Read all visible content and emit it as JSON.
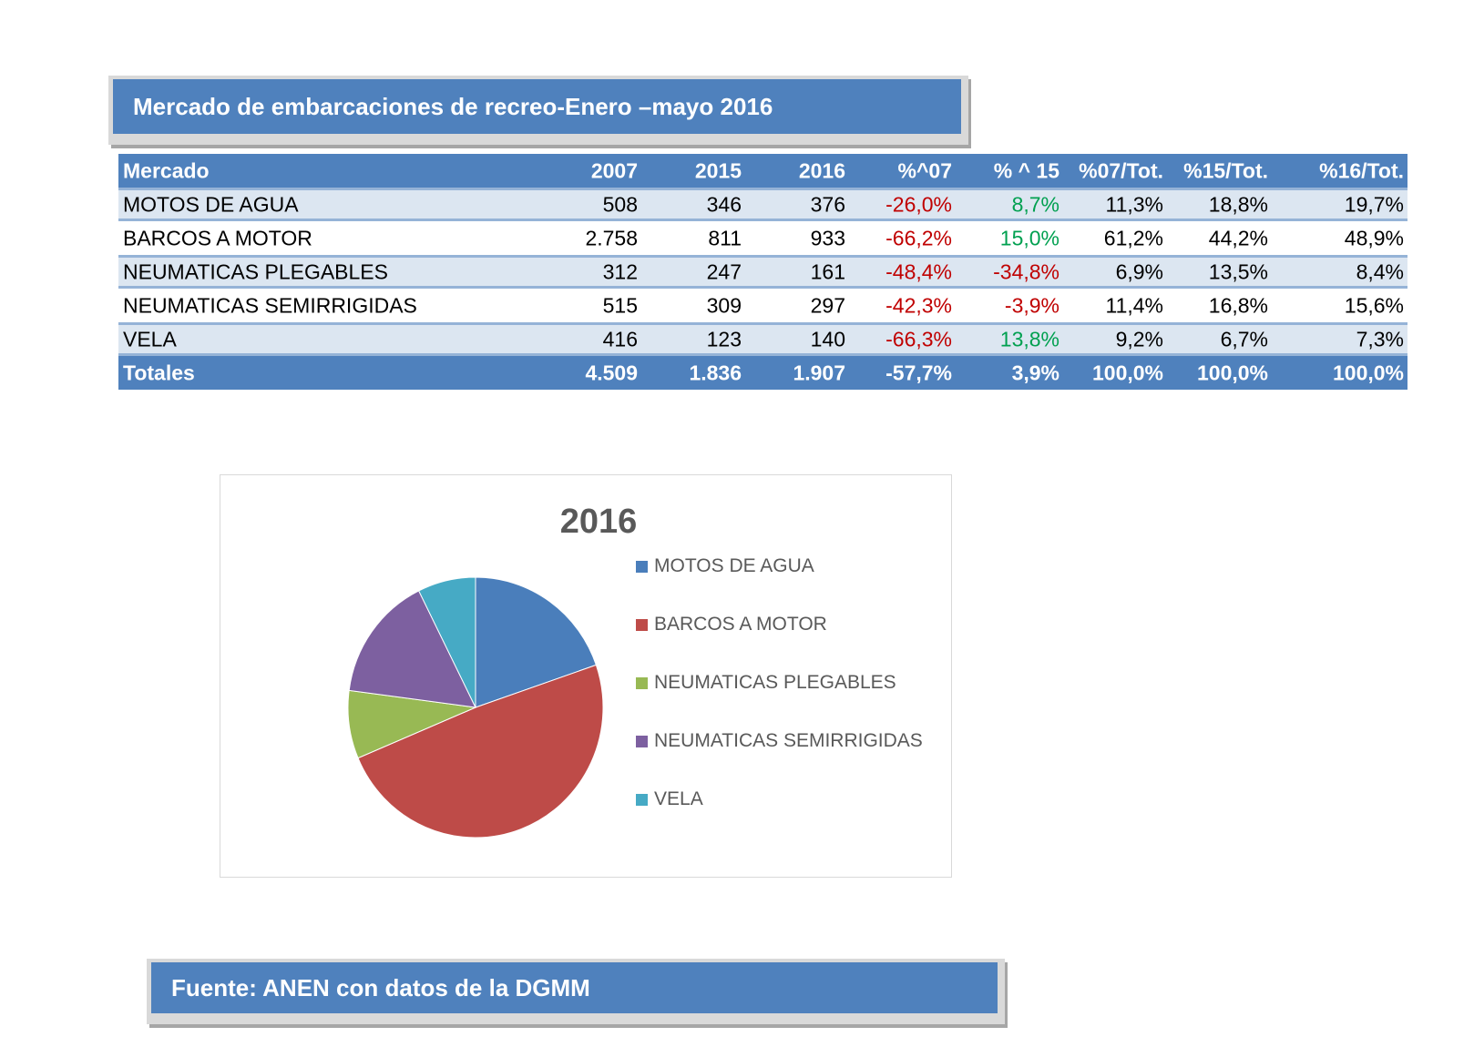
{
  "title": "Mercado de embarcaciones de recreo-Enero –mayo 2016",
  "table": {
    "headers": [
      "Mercado",
      "2007",
      "2015",
      "2016",
      "%^07",
      "% ^ 15",
      "%07/Tot.",
      "%15/Tot.",
      "%16/Tot."
    ],
    "rows": [
      [
        "MOTOS DE AGUA",
        "508",
        "346",
        "376",
        "-26,0%",
        "8,7%",
        "11,3%",
        "18,8%",
        "19,7%"
      ],
      [
        "BARCOS A MOTOR",
        "2.758",
        "811",
        "933",
        "-66,2%",
        "15,0%",
        "61,2%",
        "44,2%",
        "48,9%"
      ],
      [
        "NEUMATICAS PLEGABLES",
        "312",
        "247",
        "161",
        "-48,4%",
        "-34,8%",
        "6,9%",
        "13,5%",
        "8,4%"
      ],
      [
        "NEUMATICAS SEMIRRIGIDAS",
        "515",
        "309",
        "297",
        "-42,3%",
        "-3,9%",
        "11,4%",
        "16,8%",
        "15,6%"
      ],
      [
        "VELA",
        "416",
        "123",
        "140",
        "-66,3%",
        "13,8%",
        "9,2%",
        "6,7%",
        "7,3%"
      ]
    ],
    "totals": [
      "Totales",
      "4.509",
      "1.836",
      "1.907",
      "-57,7%",
      "3,9%",
      "100,0%",
      "100,0%",
      "100,0%"
    ]
  },
  "chart_data": {
    "type": "pie",
    "title": "2016",
    "categories": [
      "MOTOS DE AGUA",
      "BARCOS A MOTOR",
      "NEUMATICAS PLEGABLES",
      "NEUMATICAS SEMIRRIGIDAS",
      "VELA"
    ],
    "values": [
      376,
      933,
      161,
      297,
      140
    ],
    "colors": [
      "#4a7ebb",
      "#be4b48",
      "#98b954",
      "#7d60a0",
      "#46aac5"
    ],
    "legend": "right"
  },
  "source": "Fuente: ANEN con datos de la DGMM"
}
